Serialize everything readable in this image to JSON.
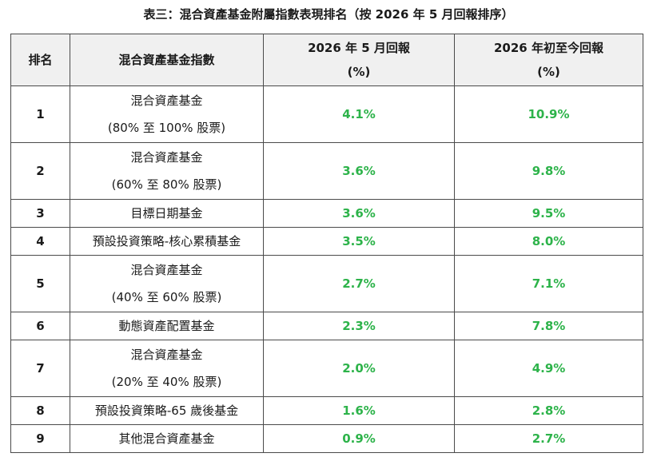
{
  "title": "表三：混合資產基金附屬指數表現排名（按 2026 年 5 月回報排序）",
  "header": {
    "rank": "排名",
    "index": "混合資產基金指數",
    "may_return_line1": "2026 年 5 月回報",
    "may_return_line2": "(%)",
    "ytd_return_line1": "2026 年初至今回報",
    "ytd_return_line2": "(%)"
  },
  "rows": [
    {
      "rank": "1",
      "name_line1": "混合資產基金",
      "name_line2": "(80% 至 100% 股票)",
      "may": "4.1%",
      "ytd": "10.9%"
    },
    {
      "rank": "2",
      "name_line1": "混合資產基金",
      "name_line2": "(60% 至 80% 股票)",
      "may": "3.6%",
      "ytd": "9.8%"
    },
    {
      "rank": "3",
      "name_line1": "目標日期基金",
      "name_line2": "",
      "may": "3.6%",
      "ytd": "9.5%"
    },
    {
      "rank": "4",
      "name_line1": "預設投資策略-核心累積基金",
      "name_line2": "",
      "may": "3.5%",
      "ytd": "8.0%"
    },
    {
      "rank": "5",
      "name_line1": "混合資產基金",
      "name_line2": "(40% 至 60% 股票)",
      "may": "2.7%",
      "ytd": "7.1%"
    },
    {
      "rank": "6",
      "name_line1": "動態資產配置基金",
      "name_line2": "",
      "may": "2.3%",
      "ytd": "7.8%"
    },
    {
      "rank": "7",
      "name_line1": "混合資產基金",
      "name_line2": "(20% 至 40% 股票)",
      "may": "2.0%",
      "ytd": "4.9%"
    },
    {
      "rank": "8",
      "name_line1": "預設投資策略-65 歲後基金",
      "name_line2": "",
      "may": "1.6%",
      "ytd": "2.8%"
    },
    {
      "rank": "9",
      "name_line1": "其他混合資產基金",
      "name_line2": "",
      "may": "0.9%",
      "ytd": "2.7%"
    }
  ],
  "colors": {
    "positive_return": "#2db34a",
    "header_background": "#f0f0f0",
    "border": "#4a4a4a"
  }
}
